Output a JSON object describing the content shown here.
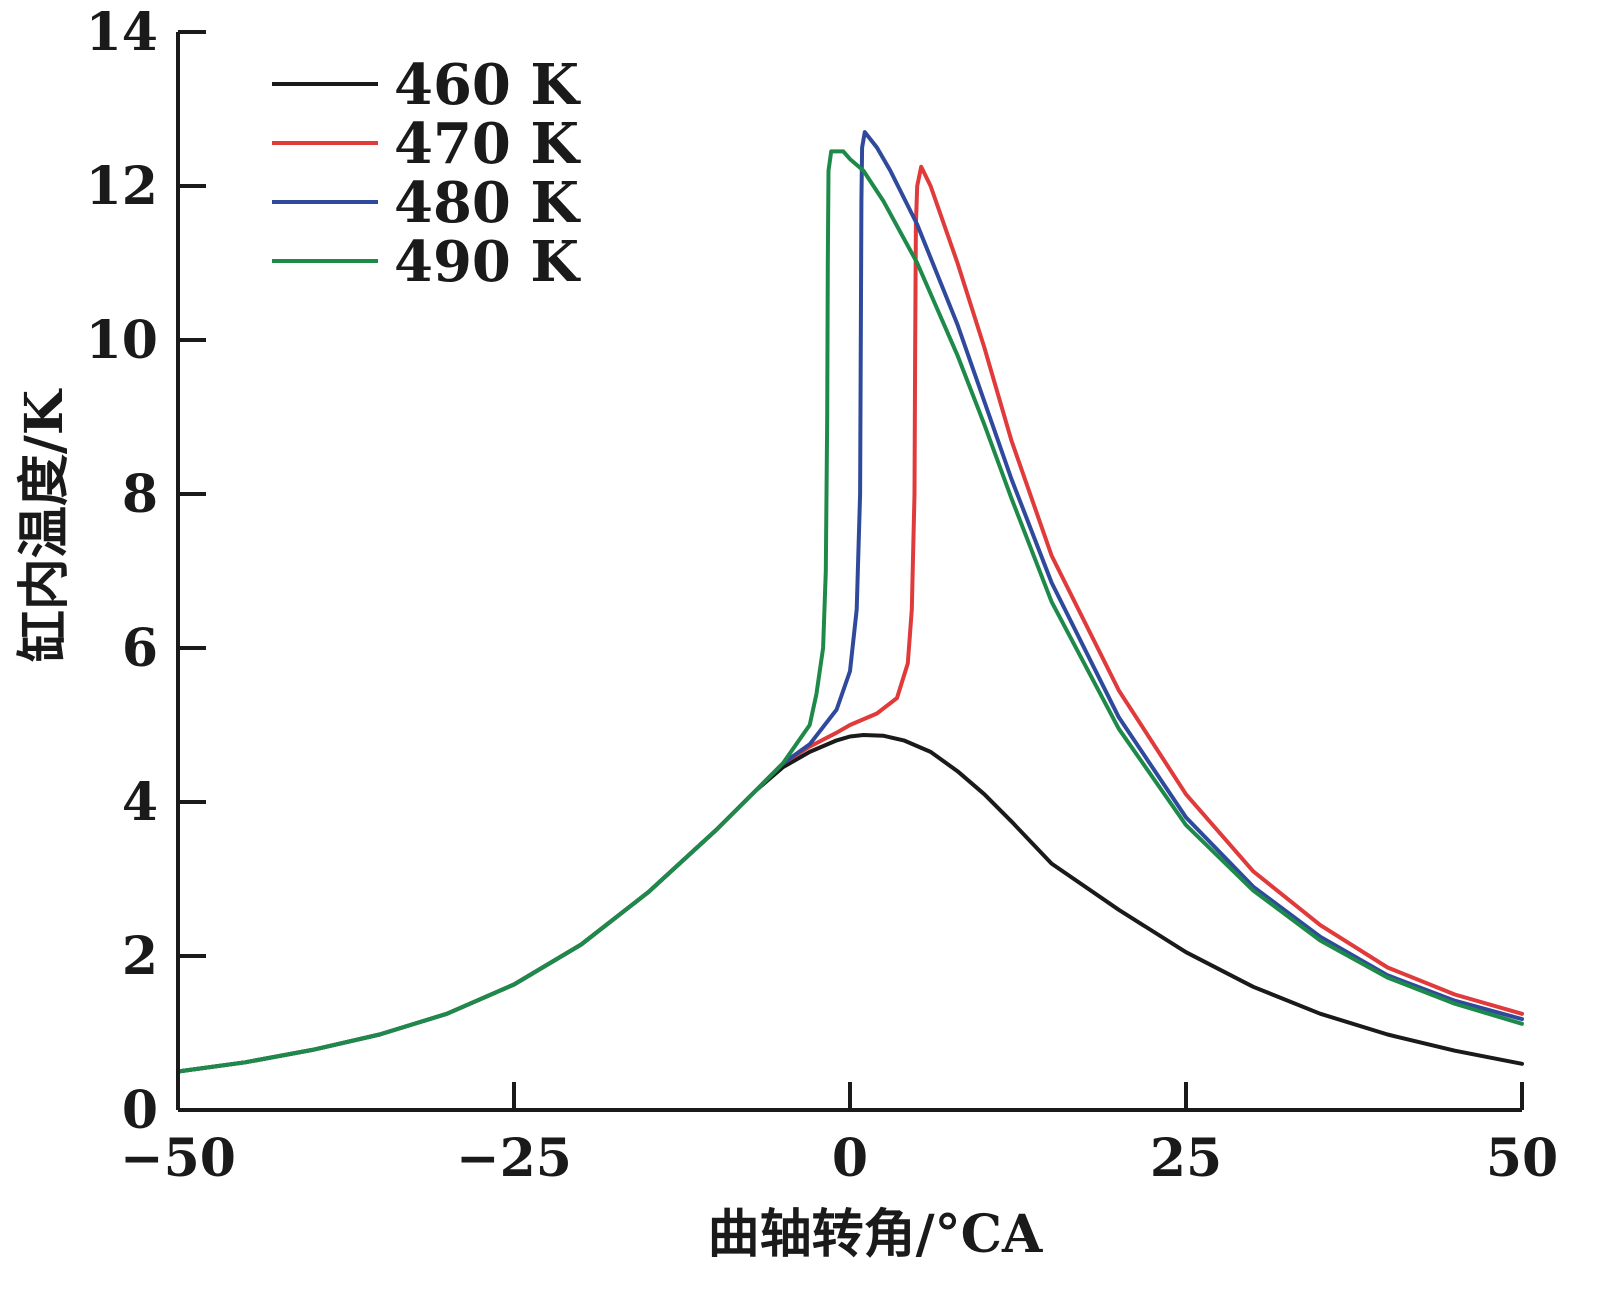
{
  "chart_data": {
    "type": "line",
    "xlabel": "曲轴转角/°CA",
    "ylabel": "缸内温度/K",
    "xlim": [
      -50,
      50
    ],
    "ylim": [
      0,
      14
    ],
    "xticks": [
      -50,
      -25,
      0,
      25,
      50
    ],
    "xtick_labels": [
      "−50",
      "−25",
      "0",
      "25",
      "50"
    ],
    "yticks": [
      0,
      2,
      4,
      6,
      8,
      10,
      12,
      14
    ],
    "ytick_labels": [
      "0",
      "2",
      "4",
      "6",
      "8",
      "10",
      "12",
      "14"
    ],
    "legend_position": "top-left",
    "grid": false,
    "series": [
      {
        "name": "460 K",
        "color": "#1a1a1a",
        "points": [
          [
            -50,
            0.5
          ],
          [
            -45,
            0.62
          ],
          [
            -40,
            0.78
          ],
          [
            -35,
            0.98
          ],
          [
            -30,
            1.25
          ],
          [
            -25,
            1.63
          ],
          [
            -20,
            2.15
          ],
          [
            -15,
            2.83
          ],
          [
            -10,
            3.63
          ],
          [
            -7,
            4.15
          ],
          [
            -5,
            4.45
          ],
          [
            -3,
            4.65
          ],
          [
            -1,
            4.8
          ],
          [
            0,
            4.85
          ],
          [
            1,
            4.87
          ],
          [
            2.5,
            4.86
          ],
          [
            4,
            4.8
          ],
          [
            6,
            4.65
          ],
          [
            8,
            4.4
          ],
          [
            10,
            4.1
          ],
          [
            12,
            3.75
          ],
          [
            15,
            3.2
          ],
          [
            20,
            2.6
          ],
          [
            25,
            2.05
          ],
          [
            30,
            1.6
          ],
          [
            35,
            1.25
          ],
          [
            40,
            0.98
          ],
          [
            45,
            0.77
          ],
          [
            50,
            0.6
          ]
        ]
      },
      {
        "name": "470 K",
        "color": "#e03a3a",
        "points": [
          [
            -50,
            0.5
          ],
          [
            -45,
            0.62
          ],
          [
            -40,
            0.78
          ],
          [
            -35,
            0.98
          ],
          [
            -30,
            1.25
          ],
          [
            -25,
            1.63
          ],
          [
            -20,
            2.15
          ],
          [
            -15,
            2.83
          ],
          [
            -10,
            3.63
          ],
          [
            -7,
            4.15
          ],
          [
            -5,
            4.5
          ],
          [
            -3,
            4.72
          ],
          [
            -1,
            4.9
          ],
          [
            0,
            5.0
          ],
          [
            2,
            5.15
          ],
          [
            3.5,
            5.35
          ],
          [
            4.3,
            5.8
          ],
          [
            4.6,
            6.5
          ],
          [
            4.8,
            8.0
          ],
          [
            4.85,
            10.0
          ],
          [
            4.9,
            11.5
          ],
          [
            5,
            12.0
          ],
          [
            5.3,
            12.25
          ],
          [
            6,
            12.0
          ],
          [
            8,
            11.0
          ],
          [
            10,
            9.9
          ],
          [
            12,
            8.7
          ],
          [
            15,
            7.2
          ],
          [
            20,
            5.45
          ],
          [
            25,
            4.1
          ],
          [
            30,
            3.1
          ],
          [
            35,
            2.4
          ],
          [
            40,
            1.85
          ],
          [
            45,
            1.5
          ],
          [
            50,
            1.25
          ]
        ]
      },
      {
        "name": "480 K",
        "color": "#2f4a9c",
        "points": [
          [
            -50,
            0.5
          ],
          [
            -45,
            0.62
          ],
          [
            -40,
            0.78
          ],
          [
            -35,
            0.98
          ],
          [
            -30,
            1.25
          ],
          [
            -25,
            1.63
          ],
          [
            -20,
            2.15
          ],
          [
            -15,
            2.83
          ],
          [
            -10,
            3.63
          ],
          [
            -7,
            4.15
          ],
          [
            -5,
            4.5
          ],
          [
            -3,
            4.75
          ],
          [
            -1,
            5.2
          ],
          [
            0,
            5.7
          ],
          [
            0.5,
            6.5
          ],
          [
            0.75,
            8.0
          ],
          [
            0.8,
            10.0
          ],
          [
            0.85,
            11.8
          ],
          [
            0.9,
            12.5
          ],
          [
            1.1,
            12.7
          ],
          [
            2,
            12.5
          ],
          [
            3,
            12.2
          ],
          [
            5,
            11.5
          ],
          [
            8,
            10.2
          ],
          [
            10,
            9.2
          ],
          [
            12,
            8.2
          ],
          [
            15,
            6.85
          ],
          [
            20,
            5.1
          ],
          [
            25,
            3.8
          ],
          [
            30,
            2.9
          ],
          [
            35,
            2.25
          ],
          [
            40,
            1.75
          ],
          [
            45,
            1.42
          ],
          [
            50,
            1.18
          ]
        ]
      },
      {
        "name": "490 K",
        "color": "#1e8a4a",
        "points": [
          [
            -50,
            0.5
          ],
          [
            -45,
            0.62
          ],
          [
            -40,
            0.78
          ],
          [
            -35,
            0.98
          ],
          [
            -30,
            1.25
          ],
          [
            -25,
            1.63
          ],
          [
            -20,
            2.15
          ],
          [
            -15,
            2.83
          ],
          [
            -10,
            3.63
          ],
          [
            -7,
            4.15
          ],
          [
            -5,
            4.5
          ],
          [
            -4,
            4.75
          ],
          [
            -3,
            5.0
          ],
          [
            -2.5,
            5.4
          ],
          [
            -2,
            6.0
          ],
          [
            -1.8,
            7.0
          ],
          [
            -1.7,
            9.0
          ],
          [
            -1.65,
            11.0
          ],
          [
            -1.6,
            12.2
          ],
          [
            -1.4,
            12.45
          ],
          [
            -0.5,
            12.45
          ],
          [
            0,
            12.35
          ],
          [
            1,
            12.2
          ],
          [
            2.5,
            11.8
          ],
          [
            5,
            11.0
          ],
          [
            8,
            9.8
          ],
          [
            10,
            8.9
          ],
          [
            12,
            7.95
          ],
          [
            15,
            6.6
          ],
          [
            20,
            4.95
          ],
          [
            25,
            3.7
          ],
          [
            30,
            2.85
          ],
          [
            35,
            2.2
          ],
          [
            40,
            1.72
          ],
          [
            45,
            1.38
          ],
          [
            50,
            1.12
          ]
        ]
      }
    ]
  }
}
